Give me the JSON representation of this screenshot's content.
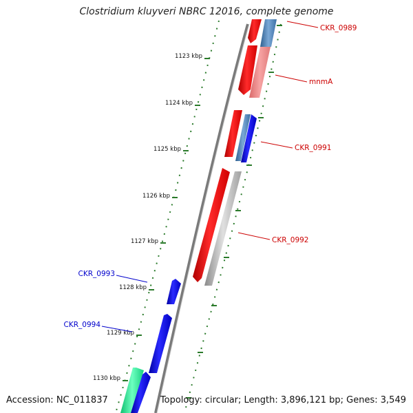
{
  "title": "Clostridium kluyveri NBRC 12016, complete genome",
  "footer": {
    "accession": "Accession: NC_011837",
    "summary": "Topology: circular; Length: 3,896,121 bp; Genes: 3,549"
  },
  "colors": {
    "forward_cds": "#ee0000",
    "reverse_cds": "#0000dd",
    "forward_cds_light": "#f08080",
    "reverse_cds_steel": "#4a7fb5",
    "pseudo_gray": "#b5b5b5",
    "tick_green": "#2a7a2a",
    "label_red": "#cc0000",
    "label_blue": "#0000cc",
    "backbone": "#808080"
  },
  "kbp_ticks": [
    "1123 kbp",
    "1124 kbp",
    "1125 kbp",
    "1126 kbp",
    "1127 kbp",
    "1128 kbp",
    "1129 kbp",
    "1130 kbp"
  ],
  "gene_labels": [
    {
      "name": "CKR_0989",
      "color": "red"
    },
    {
      "name": "mnmA",
      "color": "red"
    },
    {
      "name": "CKR_0991",
      "color": "red"
    },
    {
      "name": "CKR_0992",
      "color": "red"
    },
    {
      "name": "CKR_0993",
      "color": "blue"
    },
    {
      "name": "CKR_0994",
      "color": "blue"
    }
  ]
}
